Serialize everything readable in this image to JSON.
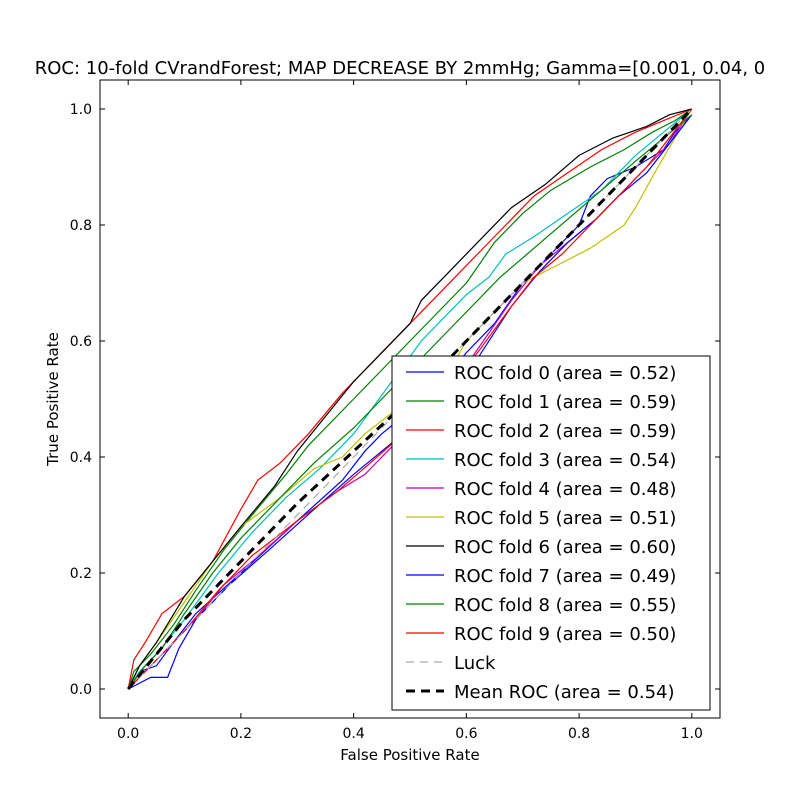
{
  "chart_data": {
    "type": "line",
    "title": "ROC: 10-fold CVrandForest; MAP DECREASE BY 2mmHg; Gamma=[0.001, 0.04, 0",
    "xlabel": "False Positive Rate",
    "ylabel": "True Positive Rate",
    "xlim": [
      -0.05,
      1.05
    ],
    "ylim": [
      -0.05,
      1.05
    ],
    "x_ticks": [
      "0.0",
      "0.2",
      "0.4",
      "0.6",
      "0.8",
      "1.0"
    ],
    "y_ticks": [
      "0.0",
      "0.2",
      "0.4",
      "0.6",
      "0.8",
      "1.0"
    ],
    "grid": false,
    "legend_position": "lower-right",
    "series": [
      {
        "name": "ROC fold 0 (area = 0.52)",
        "color": "#0000ff",
        "dash": "solid",
        "points": [
          [
            0,
            0
          ],
          [
            0.02,
            0.03
          ],
          [
            0.05,
            0.04
          ],
          [
            0.08,
            0.08
          ],
          [
            0.12,
            0.13
          ],
          [
            0.2,
            0.2
          ],
          [
            0.3,
            0.29
          ],
          [
            0.38,
            0.36
          ],
          [
            0.42,
            0.41
          ],
          [
            0.45,
            0.44
          ],
          [
            0.5,
            0.48
          ],
          [
            0.55,
            0.52
          ],
          [
            0.6,
            0.58
          ],
          [
            0.65,
            0.63
          ],
          [
            0.7,
            0.7
          ],
          [
            0.75,
            0.75
          ],
          [
            0.8,
            0.8
          ],
          [
            0.82,
            0.85
          ],
          [
            0.85,
            0.88
          ],
          [
            0.9,
            0.9
          ],
          [
            0.95,
            0.93
          ],
          [
            0.97,
            0.96
          ],
          [
            1,
            0.99
          ]
        ]
      },
      {
        "name": "ROC fold 1 (area = 0.59)",
        "color": "#008000",
        "dash": "solid",
        "points": [
          [
            0,
            0
          ],
          [
            0.01,
            0.03
          ],
          [
            0.04,
            0.06
          ],
          [
            0.08,
            0.11
          ],
          [
            0.12,
            0.17
          ],
          [
            0.17,
            0.24
          ],
          [
            0.22,
            0.3
          ],
          [
            0.28,
            0.37
          ],
          [
            0.32,
            0.42
          ],
          [
            0.4,
            0.5
          ],
          [
            0.45,
            0.55
          ],
          [
            0.5,
            0.6
          ],
          [
            0.55,
            0.65
          ],
          [
            0.6,
            0.7
          ],
          [
            0.65,
            0.77
          ],
          [
            0.7,
            0.82
          ],
          [
            0.75,
            0.86
          ],
          [
            0.82,
            0.9
          ],
          [
            0.88,
            0.93
          ],
          [
            0.93,
            0.96
          ],
          [
            0.97,
            0.98
          ],
          [
            1,
            1
          ]
        ]
      },
      {
        "name": "ROC fold 2 (area = 0.59)",
        "color": "#ff0000",
        "dash": "solid",
        "points": [
          [
            0,
            0
          ],
          [
            0.01,
            0.05
          ],
          [
            0.03,
            0.08
          ],
          [
            0.06,
            0.13
          ],
          [
            0.1,
            0.16
          ],
          [
            0.15,
            0.22
          ],
          [
            0.2,
            0.31
          ],
          [
            0.23,
            0.36
          ],
          [
            0.27,
            0.39
          ],
          [
            0.32,
            0.44
          ],
          [
            0.38,
            0.51
          ],
          [
            0.44,
            0.57
          ],
          [
            0.5,
            0.63
          ],
          [
            0.56,
            0.69
          ],
          [
            0.62,
            0.75
          ],
          [
            0.67,
            0.8
          ],
          [
            0.72,
            0.85
          ],
          [
            0.78,
            0.89
          ],
          [
            0.84,
            0.93
          ],
          [
            0.9,
            0.96
          ],
          [
            0.95,
            0.98
          ],
          [
            1,
            1
          ]
        ]
      },
      {
        "name": "ROC fold 3 (area = 0.54)",
        "color": "#00bfbf",
        "dash": "solid",
        "points": [
          [
            0,
            0
          ],
          [
            0.02,
            0.03
          ],
          [
            0.05,
            0.06
          ],
          [
            0.1,
            0.12
          ],
          [
            0.16,
            0.2
          ],
          [
            0.22,
            0.27
          ],
          [
            0.28,
            0.33
          ],
          [
            0.34,
            0.38
          ],
          [
            0.4,
            0.44
          ],
          [
            0.46,
            0.52
          ],
          [
            0.52,
            0.6
          ],
          [
            0.56,
            0.64
          ],
          [
            0.6,
            0.68
          ],
          [
            0.64,
            0.71
          ],
          [
            0.67,
            0.75
          ],
          [
            0.72,
            0.78
          ],
          [
            0.78,
            0.82
          ],
          [
            0.84,
            0.86
          ],
          [
            0.9,
            0.92
          ],
          [
            0.95,
            0.96
          ],
          [
            1,
            1
          ]
        ]
      },
      {
        "name": "ROC fold 4 (area = 0.48)",
        "color": "#bf00bf",
        "dash": "solid",
        "points": [
          [
            0,
            0
          ],
          [
            0.03,
            0.03
          ],
          [
            0.07,
            0.07
          ],
          [
            0.12,
            0.12
          ],
          [
            0.17,
            0.18
          ],
          [
            0.22,
            0.22
          ],
          [
            0.3,
            0.29
          ],
          [
            0.37,
            0.34
          ],
          [
            0.42,
            0.37
          ],
          [
            0.47,
            0.42
          ],
          [
            0.52,
            0.47
          ],
          [
            0.58,
            0.53
          ],
          [
            0.63,
            0.6
          ],
          [
            0.68,
            0.67
          ],
          [
            0.73,
            0.73
          ],
          [
            0.78,
            0.77
          ],
          [
            0.83,
            0.81
          ],
          [
            0.88,
            0.86
          ],
          [
            0.92,
            0.9
          ],
          [
            0.96,
            0.94
          ],
          [
            1,
            1
          ]
        ]
      },
      {
        "name": "ROC fold 5 (area = 0.51)",
        "color": "#bfbf00",
        "dash": "solid",
        "points": [
          [
            0,
            0
          ],
          [
            0.02,
            0.04
          ],
          [
            0.05,
            0.08
          ],
          [
            0.1,
            0.15
          ],
          [
            0.15,
            0.22
          ],
          [
            0.2,
            0.28
          ],
          [
            0.27,
            0.33
          ],
          [
            0.33,
            0.38
          ],
          [
            0.38,
            0.4
          ],
          [
            0.42,
            0.44
          ],
          [
            0.5,
            0.5
          ],
          [
            0.57,
            0.55
          ],
          [
            0.6,
            0.6
          ],
          [
            0.64,
            0.64
          ],
          [
            0.7,
            0.7
          ],
          [
            0.76,
            0.73
          ],
          [
            0.82,
            0.76
          ],
          [
            0.88,
            0.8
          ],
          [
            0.9,
            0.83
          ],
          [
            0.94,
            0.9
          ],
          [
            1,
            1
          ]
        ]
      },
      {
        "name": "ROC fold 6 (area = 0.60)",
        "color": "#000000",
        "dash": "solid",
        "points": [
          [
            0,
            0
          ],
          [
            0.02,
            0.04
          ],
          [
            0.05,
            0.08
          ],
          [
            0.1,
            0.16
          ],
          [
            0.15,
            0.22
          ],
          [
            0.2,
            0.28
          ],
          [
            0.26,
            0.35
          ],
          [
            0.3,
            0.41
          ],
          [
            0.35,
            0.47
          ],
          [
            0.4,
            0.53
          ],
          [
            0.45,
            0.58
          ],
          [
            0.5,
            0.63
          ],
          [
            0.52,
            0.67
          ],
          [
            0.57,
            0.72
          ],
          [
            0.62,
            0.77
          ],
          [
            0.68,
            0.83
          ],
          [
            0.74,
            0.87
          ],
          [
            0.8,
            0.92
          ],
          [
            0.86,
            0.95
          ],
          [
            0.92,
            0.97
          ],
          [
            0.96,
            0.99
          ],
          [
            1,
            1
          ]
        ]
      },
      {
        "name": "ROC fold 7 (area = 0.49)",
        "color": "#0000ff",
        "dash": "solid",
        "points": [
          [
            0,
            0
          ],
          [
            0.04,
            0.02
          ],
          [
            0.07,
            0.02
          ],
          [
            0.09,
            0.07
          ],
          [
            0.12,
            0.12
          ],
          [
            0.18,
            0.18
          ],
          [
            0.25,
            0.24
          ],
          [
            0.33,
            0.31
          ],
          [
            0.4,
            0.37
          ],
          [
            0.45,
            0.41
          ],
          [
            0.5,
            0.45
          ],
          [
            0.56,
            0.5
          ],
          [
            0.62,
            0.57
          ],
          [
            0.68,
            0.66
          ],
          [
            0.73,
            0.72
          ],
          [
            0.78,
            0.77
          ],
          [
            0.83,
            0.81
          ],
          [
            0.87,
            0.85
          ],
          [
            0.92,
            0.89
          ],
          [
            0.96,
            0.94
          ],
          [
            1,
            0.99
          ]
        ]
      },
      {
        "name": "ROC fold 8 (area = 0.55)",
        "color": "#008000",
        "dash": "solid",
        "points": [
          [
            0,
            0
          ],
          [
            0.03,
            0.04
          ],
          [
            0.06,
            0.07
          ],
          [
            0.1,
            0.13
          ],
          [
            0.15,
            0.2
          ],
          [
            0.2,
            0.26
          ],
          [
            0.27,
            0.33
          ],
          [
            0.33,
            0.39
          ],
          [
            0.4,
            0.45
          ],
          [
            0.45,
            0.5
          ],
          [
            0.5,
            0.55
          ],
          [
            0.55,
            0.6
          ],
          [
            0.6,
            0.65
          ],
          [
            0.66,
            0.71
          ],
          [
            0.72,
            0.76
          ],
          [
            0.78,
            0.81
          ],
          [
            0.84,
            0.86
          ],
          [
            0.9,
            0.91
          ],
          [
            0.95,
            0.95
          ],
          [
            1,
            0.99
          ]
        ]
      },
      {
        "name": "ROC fold 9 (area = 0.50)",
        "color": "#ff0000",
        "dash": "solid",
        "points": [
          [
            0,
            0
          ],
          [
            0.02,
            0.02
          ],
          [
            0.05,
            0.05
          ],
          [
            0.1,
            0.1
          ],
          [
            0.16,
            0.17
          ],
          [
            0.22,
            0.23
          ],
          [
            0.3,
            0.29
          ],
          [
            0.37,
            0.34
          ],
          [
            0.43,
            0.39
          ],
          [
            0.5,
            0.45
          ],
          [
            0.56,
            0.51
          ],
          [
            0.62,
            0.58
          ],
          [
            0.68,
            0.66
          ],
          [
            0.72,
            0.71
          ],
          [
            0.77,
            0.75
          ],
          [
            0.82,
            0.8
          ],
          [
            0.87,
            0.85
          ],
          [
            0.92,
            0.9
          ],
          [
            0.96,
            0.95
          ],
          [
            1,
            1
          ]
        ]
      },
      {
        "name": "Luck",
        "color": "#aaaaaa",
        "dash": "luck",
        "points": [
          [
            0,
            0
          ],
          [
            1,
            1
          ]
        ]
      },
      {
        "name": "Mean ROC (area = 0.54)",
        "color": "#000000",
        "dash": "mean",
        "points": [
          [
            0,
            0
          ],
          [
            0.05,
            0.06
          ],
          [
            0.1,
            0.12
          ],
          [
            0.2,
            0.22
          ],
          [
            0.3,
            0.32
          ],
          [
            0.4,
            0.41
          ],
          [
            0.5,
            0.5
          ],
          [
            0.6,
            0.6
          ],
          [
            0.7,
            0.7
          ],
          [
            0.8,
            0.8
          ],
          [
            0.9,
            0.9
          ],
          [
            1,
            1
          ]
        ]
      }
    ]
  }
}
